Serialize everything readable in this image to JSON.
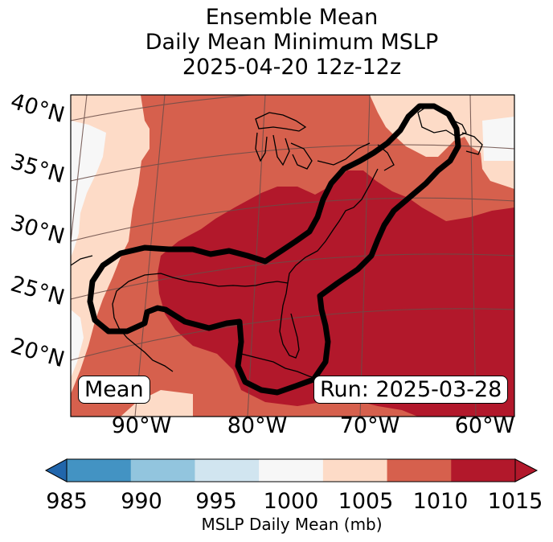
{
  "title": {
    "line1": "Ensemble Mean",
    "line2": "Daily Mean Minimum MSLP",
    "line3": "2025-04-20 12z-12z"
  },
  "latitude_labels": [
    "40°N",
    "35°N",
    "30°N",
    "25°N",
    "20°N"
  ],
  "longitude_labels": [
    "90°W",
    "80°W",
    "70°W",
    "60°W"
  ],
  "mean_label": "Mean",
  "run_label": "Run: 2025-03-28",
  "colorbar": {
    "label": "MSLP Daily Mean (mb)",
    "ticks": [
      "985",
      "990",
      "995",
      "1000",
      "1005",
      "1010",
      "1015"
    ],
    "colors": [
      "#4393c3",
      "#92c5de",
      "#d1e5f0",
      "#f7f7f7",
      "#fddbc7",
      "#d6604d",
      "#b2182b"
    ],
    "under_color": "#2166ac",
    "over_color": "#b2182b"
  },
  "fill_colors": {
    "band_1000_1005": "#f7f7f7",
    "band_1005_1010": "#fddbc7",
    "band_1010_1015": "#d6604d",
    "above_1015": "#b2182b"
  }
}
